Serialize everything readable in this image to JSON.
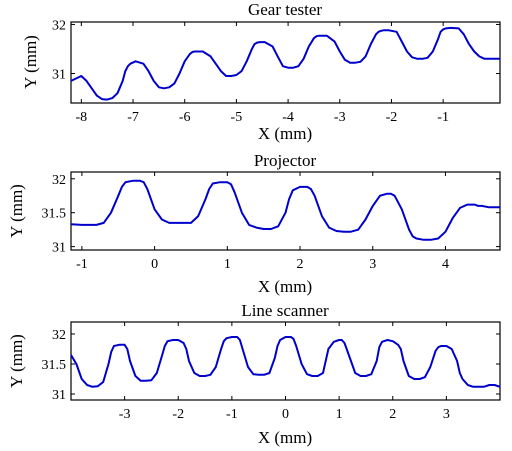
{
  "line_color": "#0000cc",
  "chart_data": [
    {
      "type": "line",
      "title": "Gear tester",
      "xlabel": "X (mm)",
      "ylabel": "Y (mm)",
      "xlim": [
        -8.2,
        0.1
      ],
      "ylim": [
        30.4,
        32.05
      ],
      "xticks": [
        -8,
        -7,
        -6,
        -5,
        -4,
        -3,
        -2,
        -1
      ],
      "yticks": [
        31,
        32
      ],
      "grid": false,
      "series": [
        {
          "x": [
            -8.2,
            -8.0,
            -7.9,
            -7.8,
            -7.7,
            -7.6,
            -7.5,
            -7.4,
            -7.3,
            -7.2,
            -7.15,
            -7.1,
            -7.05,
            -6.95,
            -6.8,
            -6.7,
            -6.6,
            -6.5,
            -6.4,
            -6.3,
            -6.2,
            -6.1,
            -6.0,
            -5.9,
            -5.85,
            -5.8,
            -5.75,
            -5.65,
            -5.5,
            -5.4,
            -5.3,
            -5.2,
            -5.1,
            -5.0,
            -4.9,
            -4.8,
            -4.7,
            -4.65,
            -4.6,
            -4.55,
            -4.45,
            -4.3,
            -4.2,
            -4.1,
            -4.0,
            -3.9,
            -3.8,
            -3.7,
            -3.6,
            -3.5,
            -3.45,
            -3.4,
            -3.35,
            -3.25,
            -3.1,
            -3.0,
            -2.9,
            -2.8,
            -2.7,
            -2.6,
            -2.5,
            -2.4,
            -2.3,
            -2.25,
            -2.2,
            -2.15,
            -2.05,
            -1.9,
            -1.8,
            -1.7,
            -1.6,
            -1.5,
            -1.4,
            -1.3,
            -1.2,
            -1.1,
            -1.05,
            -1.0,
            -0.95,
            -0.85,
            -0.7,
            -0.6,
            -0.5,
            -0.4,
            -0.3,
            -0.2,
            -0.1,
            0.0,
            0.1
          ],
          "y": [
            30.85,
            30.95,
            30.85,
            30.7,
            30.55,
            30.48,
            30.47,
            30.5,
            30.6,
            30.85,
            31.05,
            31.15,
            31.2,
            31.25,
            31.2,
            31.05,
            30.85,
            30.72,
            30.7,
            30.72,
            30.8,
            31.0,
            31.25,
            31.4,
            31.44,
            31.45,
            31.45,
            31.45,
            31.35,
            31.2,
            31.05,
            30.95,
            30.95,
            30.97,
            31.05,
            31.25,
            31.5,
            31.6,
            31.63,
            31.64,
            31.64,
            31.55,
            31.35,
            31.15,
            31.12,
            31.12,
            31.15,
            31.3,
            31.55,
            31.72,
            31.76,
            31.77,
            31.77,
            31.77,
            31.65,
            31.45,
            31.28,
            31.22,
            31.22,
            31.24,
            31.35,
            31.6,
            31.8,
            31.85,
            31.87,
            31.88,
            31.88,
            31.85,
            31.65,
            31.45,
            31.33,
            31.3,
            31.3,
            31.32,
            31.45,
            31.7,
            31.85,
            31.9,
            31.92,
            31.93,
            31.92,
            31.8,
            31.6,
            31.45,
            31.35,
            31.3,
            31.3,
            31.3,
            31.3
          ]
        }
      ]
    },
    {
      "type": "line",
      "title": "Projector",
      "xlabel": "X (mm)",
      "ylabel": "Y (mm)",
      "xlim": [
        -1.15,
        4.75
      ],
      "ylim": [
        30.95,
        32.1
      ],
      "xticks": [
        -1,
        0,
        1,
        2,
        3,
        4
      ],
      "yticks": [
        31,
        31.5,
        32
      ],
      "ytick_labels": [
        "31",
        "31.5",
        "32"
      ],
      "grid": false,
      "series": [
        {
          "x": [
            -1.15,
            -1.0,
            -0.9,
            -0.8,
            -0.7,
            -0.6,
            -0.5,
            -0.45,
            -0.4,
            -0.3,
            -0.2,
            -0.15,
            -0.1,
            0.0,
            0.1,
            0.2,
            0.3,
            0.4,
            0.5,
            0.6,
            0.7,
            0.75,
            0.8,
            0.9,
            1.0,
            1.05,
            1.1,
            1.2,
            1.3,
            1.4,
            1.5,
            1.6,
            1.7,
            1.8,
            1.85,
            1.9,
            2.0,
            2.1,
            2.15,
            2.2,
            2.3,
            2.4,
            2.5,
            2.6,
            2.7,
            2.8,
            2.9,
            3.0,
            3.1,
            3.2,
            3.25,
            3.3,
            3.4,
            3.5,
            3.55,
            3.6,
            3.7,
            3.8,
            3.9,
            4.0,
            4.1,
            4.2,
            4.3,
            4.4,
            4.45,
            4.5,
            4.6,
            4.7,
            4.75
          ],
          "y": [
            31.33,
            31.32,
            31.32,
            31.32,
            31.35,
            31.5,
            31.75,
            31.88,
            31.95,
            31.97,
            31.97,
            31.95,
            31.85,
            31.55,
            31.4,
            31.35,
            31.35,
            31.35,
            31.35,
            31.45,
            31.7,
            31.85,
            31.93,
            31.95,
            31.95,
            31.92,
            31.8,
            31.5,
            31.32,
            31.28,
            31.26,
            31.26,
            31.3,
            31.5,
            31.7,
            31.83,
            31.88,
            31.88,
            31.85,
            31.75,
            31.45,
            31.28,
            31.23,
            31.22,
            31.22,
            31.25,
            31.4,
            31.6,
            31.75,
            31.78,
            31.78,
            31.75,
            31.55,
            31.25,
            31.15,
            31.12,
            31.1,
            31.1,
            31.12,
            31.22,
            31.42,
            31.57,
            31.62,
            31.62,
            31.6,
            31.6,
            31.58,
            31.58,
            31.58
          ]
        }
      ]
    },
    {
      "type": "line",
      "title": "Line scanner",
      "xlabel": "X (mm)",
      "ylabel": "Y (mm)",
      "xlim": [
        -4.0,
        4.0
      ],
      "ylim": [
        30.9,
        32.2
      ],
      "xticks": [
        -3,
        -2,
        -1,
        0,
        1,
        2,
        3
      ],
      "yticks": [
        31,
        31.5,
        32
      ],
      "ytick_labels": [
        "31",
        "31.5",
        "32"
      ],
      "grid": false,
      "series": [
        {
          "x": [
            -4.0,
            -3.9,
            -3.8,
            -3.7,
            -3.6,
            -3.5,
            -3.4,
            -3.3,
            -3.25,
            -3.2,
            -3.1,
            -3.0,
            -2.95,
            -2.9,
            -2.8,
            -2.7,
            -2.6,
            -2.5,
            -2.4,
            -2.3,
            -2.25,
            -2.2,
            -2.1,
            -2.0,
            -1.9,
            -1.85,
            -1.8,
            -1.7,
            -1.6,
            -1.5,
            -1.4,
            -1.3,
            -1.2,
            -1.15,
            -1.1,
            -1.0,
            -0.9,
            -0.85,
            -0.8,
            -0.7,
            -0.6,
            -0.5,
            -0.4,
            -0.3,
            -0.2,
            -0.15,
            -0.1,
            0.0,
            0.1,
            0.15,
            0.2,
            0.3,
            0.4,
            0.5,
            0.6,
            0.7,
            0.75,
            0.8,
            0.9,
            1.0,
            1.05,
            1.1,
            1.2,
            1.3,
            1.4,
            1.5,
            1.6,
            1.7,
            1.75,
            1.8,
            1.9,
            2.0,
            2.1,
            2.15,
            2.2,
            2.3,
            2.4,
            2.5,
            2.6,
            2.7,
            2.8,
            2.85,
            2.9,
            3.0,
            3.1,
            3.2,
            3.25,
            3.3,
            3.4,
            3.5,
            3.6,
            3.7,
            3.8,
            3.9,
            4.0
          ],
          "y": [
            31.65,
            31.5,
            31.25,
            31.15,
            31.12,
            31.13,
            31.2,
            31.5,
            31.7,
            31.8,
            31.82,
            31.82,
            31.75,
            31.55,
            31.3,
            31.22,
            31.22,
            31.23,
            31.35,
            31.65,
            31.8,
            31.88,
            31.9,
            31.9,
            31.85,
            31.75,
            31.55,
            31.35,
            31.3,
            31.3,
            31.32,
            31.45,
            31.75,
            31.88,
            31.93,
            31.95,
            31.95,
            31.9,
            31.75,
            31.45,
            31.33,
            31.32,
            31.32,
            31.35,
            31.6,
            31.8,
            31.9,
            31.95,
            31.95,
            31.92,
            31.8,
            31.5,
            31.33,
            31.3,
            31.3,
            31.35,
            31.55,
            31.75,
            31.87,
            31.9,
            31.9,
            31.85,
            31.6,
            31.35,
            31.3,
            31.3,
            31.33,
            31.55,
            31.78,
            31.87,
            31.9,
            31.88,
            31.82,
            31.75,
            31.55,
            31.3,
            31.25,
            31.25,
            31.28,
            31.45,
            31.72,
            31.78,
            31.8,
            31.8,
            31.75,
            31.55,
            31.35,
            31.25,
            31.15,
            31.12,
            31.12,
            31.12,
            31.15,
            31.15,
            31.12
          ]
        }
      ]
    }
  ]
}
